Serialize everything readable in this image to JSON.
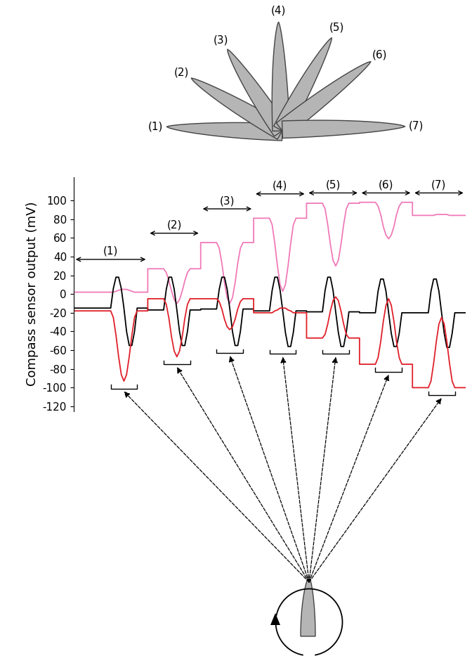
{
  "chart_data": {
    "type": "line",
    "y_label": "Compass sensor output (mV)",
    "x": [
      0,
      7,
      7.5,
      8,
      8.5,
      9,
      9.5,
      10,
      10.5,
      11,
      11.5,
      12,
      14,
      14,
      17,
      17.5,
      18,
      18.5,
      19,
      19.5,
      20,
      20.5,
      21,
      21.5,
      22,
      24,
      24,
      27,
      27.5,
      28,
      28.5,
      29,
      29.5,
      30,
      30.5,
      31,
      31.5,
      32,
      34,
      34,
      37,
      37.5,
      38,
      38.5,
      39,
      39.5,
      40,
      40.5,
      41,
      41.5,
      42,
      44,
      44,
      47,
      47.5,
      48,
      48.5,
      49,
      49.5,
      50,
      50.5,
      51,
      51.5,
      52,
      54,
      54,
      57,
      57.5,
      58,
      58.5,
      59,
      59.5,
      60,
      60.5,
      61,
      61.5,
      62,
      64,
      64,
      67,
      67.5,
      68,
      68.5,
      69,
      69.5,
      70,
      70.5,
      71,
      71.5,
      72,
      74
    ],
    "series": [
      {
        "color": "#f07ab8",
        "values": [
          2,
          2,
          2,
          3,
          4,
          5,
          5,
          5,
          4,
          3,
          2,
          2,
          2,
          27,
          27,
          23,
          14,
          3,
          -6,
          -10,
          -6,
          3,
          14,
          23,
          27,
          27,
          55,
          55,
          49,
          33,
          12,
          -4,
          -10,
          -4,
          12,
          33,
          49,
          55,
          55,
          81,
          81,
          74,
          54,
          30,
          10,
          3,
          10,
          30,
          54,
          74,
          81,
          81,
          97,
          97,
          91,
          74,
          53,
          36,
          30,
          36,
          53,
          74,
          91,
          97,
          97,
          98,
          98,
          94,
          85,
          72,
          63,
          59,
          63,
          72,
          85,
          94,
          98,
          98,
          84,
          84,
          84,
          84,
          85,
          85,
          85,
          85,
          85,
          84,
          84,
          84,
          84
        ]
      },
      {
        "color": "#000000",
        "values": [
          -15,
          -15,
          6,
          18,
          18,
          6,
          -15,
          -40,
          -55,
          -55,
          -40,
          -15,
          -15,
          -17,
          -17,
          5,
          18,
          18,
          5,
          -17,
          -40,
          -55,
          -55,
          -40,
          -17,
          -17,
          -16,
          -16,
          5,
          18,
          18,
          5,
          -16,
          -40,
          -55,
          -55,
          -40,
          -16,
          -16,
          -18,
          -18,
          4,
          18,
          18,
          4,
          -18,
          -41,
          -56,
          -56,
          -41,
          -18,
          -18,
          -19,
          -19,
          4,
          18,
          18,
          4,
          -19,
          -41,
          -56,
          -56,
          -41,
          -19,
          -19,
          -20,
          -20,
          3,
          16,
          16,
          3,
          -20,
          -42,
          -56,
          -56,
          -42,
          -20,
          -20,
          -20,
          -20,
          3,
          16,
          16,
          3,
          -20,
          -42,
          -57,
          -57,
          -42,
          -20,
          -20
        ]
      },
      {
        "color": "#e0202a",
        "values": [
          -18,
          -18,
          -25,
          -44,
          -67,
          -86,
          -93,
          -86,
          -67,
          -44,
          -25,
          -18,
          -18,
          -5,
          -5,
          -11,
          -26,
          -46,
          -61,
          -67,
          -61,
          -46,
          -26,
          -11,
          -5,
          -5,
          -5,
          -5,
          -8,
          -16,
          -27,
          -35,
          -38,
          -35,
          -27,
          -16,
          -8,
          -5,
          -5,
          -20,
          -20,
          -20,
          -18,
          -17,
          -15,
          -15,
          -15,
          -17,
          -18,
          -20,
          -20,
          -20,
          -47,
          -47,
          -43,
          -32,
          -18,
          -7,
          -3,
          -7,
          -18,
          -32,
          -43,
          -47,
          -47,
          -75,
          -75,
          -68,
          -51,
          -29,
          -12,
          -5,
          -12,
          -29,
          -51,
          -68,
          -75,
          -75,
          -100,
          -100,
          -93,
          -74,
          -51,
          -32,
          -25,
          -32,
          -51,
          -74,
          -93,
          -100,
          -100
        ]
      }
    ],
    "xlim": [
      0,
      74
    ],
    "ylim": [
      -125,
      125
    ],
    "yticks": [
      -120,
      -100,
      -80,
      -60,
      -40,
      -20,
      0,
      20,
      40,
      60,
      80,
      100
    ],
    "tick_labels": "y",
    "segments": [
      {
        "label": "(1)",
        "start": 0,
        "end": 14,
        "rotation": [
          7,
          12
        ]
      },
      {
        "label": "(2)",
        "start": 14,
        "end": 24,
        "rotation": [
          17,
          22
        ]
      },
      {
        "label": "(3)",
        "start": 24,
        "end": 34,
        "rotation": [
          27,
          32
        ]
      },
      {
        "label": "(4)",
        "start": 34,
        "end": 44,
        "rotation": [
          37,
          42
        ]
      },
      {
        "label": "(5)",
        "start": 44,
        "end": 54,
        "rotation": [
          47,
          52
        ]
      },
      {
        "label": "(6)",
        "start": 54,
        "end": 64,
        "rotation": [
          57,
          62
        ]
      },
      {
        "label": "(7)",
        "start": 64,
        "end": 74,
        "rotation": [
          67,
          72
        ]
      }
    ]
  }
}
